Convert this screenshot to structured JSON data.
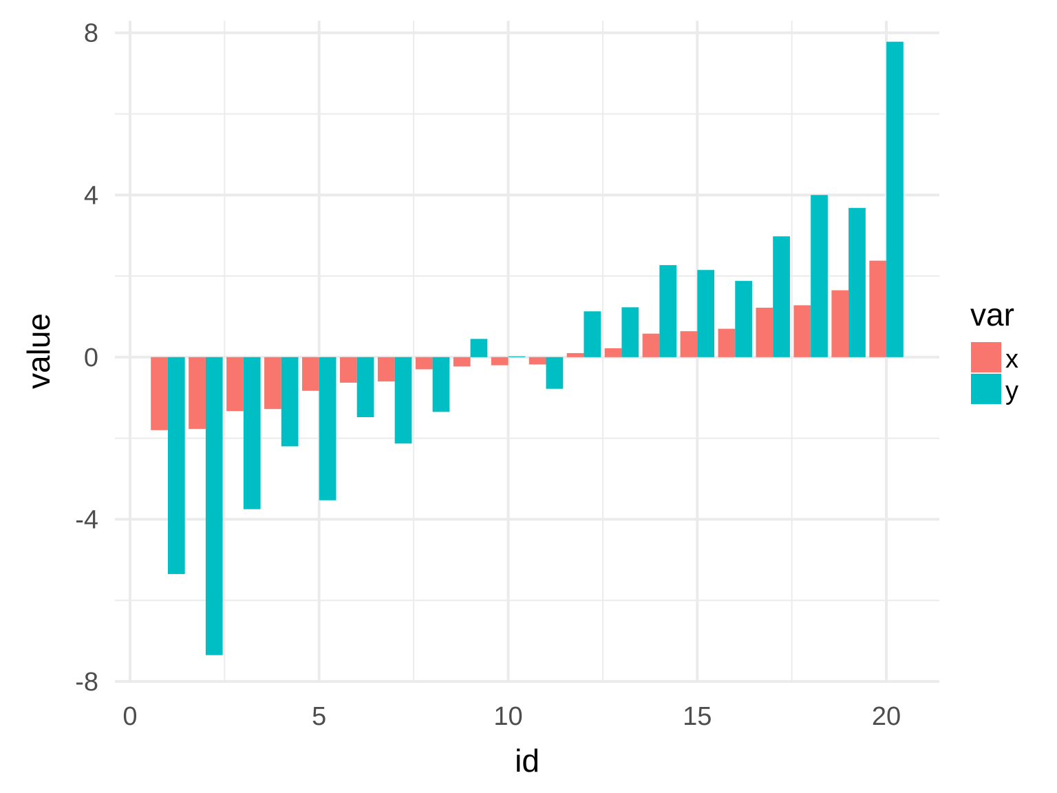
{
  "chart_data": {
    "type": "bar",
    "xlabel": "id",
    "ylabel": "value",
    "xlim": [
      -0.4,
      21.4
    ],
    "ylim": [
      -8.0,
      8.3
    ],
    "x_ticks": [
      0,
      5,
      10,
      15,
      20
    ],
    "x_tick_labels": [
      "0",
      "5",
      "10",
      "15",
      "20"
    ],
    "y_ticks": [
      -8,
      -4,
      0,
      4,
      8
    ],
    "y_tick_labels": [
      "-8",
      "-4",
      "0",
      "4",
      "8"
    ],
    "grid": true,
    "legend": {
      "title": "var",
      "position": "right"
    },
    "categories": [
      1,
      2,
      3,
      4,
      5,
      6,
      7,
      8,
      9,
      10,
      11,
      12,
      13,
      14,
      15,
      16,
      17,
      18,
      19,
      20
    ],
    "series": [
      {
        "name": "x",
        "color": "#F8766D",
        "values": [
          -1.8,
          -1.77,
          -1.33,
          -1.28,
          -0.83,
          -0.63,
          -0.6,
          -0.3,
          -0.23,
          -0.2,
          -0.18,
          0.1,
          0.22,
          0.58,
          0.64,
          0.7,
          1.22,
          1.28,
          1.65,
          2.38
        ]
      },
      {
        "name": "y",
        "color": "#00BFC4",
        "values": [
          -5.35,
          -7.35,
          -3.75,
          -2.2,
          -3.53,
          -1.48,
          -2.13,
          -1.35,
          0.45,
          0.02,
          -0.78,
          1.13,
          1.23,
          2.27,
          2.15,
          1.88,
          2.98,
          4.0,
          3.68,
          7.78
        ]
      }
    ]
  }
}
